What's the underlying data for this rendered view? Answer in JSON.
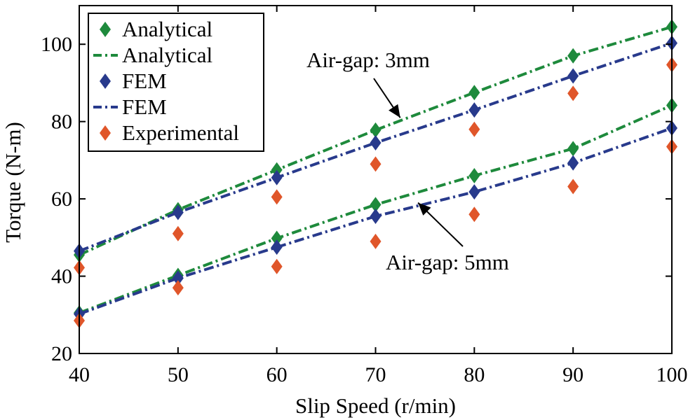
{
  "chart_data": {
    "type": "line",
    "title": "",
    "xlabel": "Slip Speed (r/min)",
    "ylabel": "Torque (N-m)",
    "xlim": [
      40,
      100
    ],
    "ylim": [
      20,
      110
    ],
    "x": [
      40,
      50,
      60,
      70,
      80,
      90,
      100
    ],
    "xticks": [
      40,
      50,
      60,
      70,
      80,
      90,
      100
    ],
    "yticks": [
      20,
      40,
      60,
      80,
      100
    ],
    "grid": false,
    "legend_position": "top-left",
    "colors": {
      "analytical": "#1e8a3c",
      "fem": "#283a8c",
      "experimental": "#e0562a"
    },
    "legend": [
      {
        "label": "Analytical",
        "kind": "marker",
        "color": "#1e8a3c"
      },
      {
        "label": "Analytical",
        "kind": "line",
        "color": "#1e8a3c"
      },
      {
        "label": "FEM",
        "kind": "marker",
        "color": "#283a8c"
      },
      {
        "label": "FEM",
        "kind": "line",
        "color": "#283a8c"
      },
      {
        "label": "Experimental",
        "kind": "marker",
        "color": "#e0562a"
      }
    ],
    "series": [
      {
        "name": "Analytical (Air-gap 3mm)",
        "method": "analytical",
        "gap": "3mm",
        "values": [
          45.5,
          57.2,
          67.5,
          77.8,
          87.5,
          97.0,
          104.5
        ]
      },
      {
        "name": "FEM (Air-gap 3mm)",
        "method": "fem",
        "gap": "3mm",
        "values": [
          46.5,
          56.5,
          65.5,
          74.5,
          83.0,
          91.8,
          100.3
        ]
      },
      {
        "name": "Experimental (Air-gap 3mm)",
        "method": "experimental",
        "gap": "3mm",
        "values": [
          42.2,
          51.0,
          60.5,
          69.0,
          78.0,
          87.3,
          94.7
        ]
      },
      {
        "name": "Analytical (Air-gap 5mm)",
        "method": "analytical",
        "gap": "5mm",
        "values": [
          30.5,
          40.2,
          49.8,
          58.5,
          66.0,
          73.0,
          84.2
        ]
      },
      {
        "name": "FEM (Air-gap 5mm)",
        "method": "fem",
        "gap": "5mm",
        "values": [
          30.2,
          39.5,
          47.5,
          55.5,
          61.8,
          69.3,
          78.3
        ]
      },
      {
        "name": "Experimental (Air-gap 5mm)",
        "method": "experimental",
        "gap": "5mm",
        "values": [
          28.5,
          37.0,
          42.5,
          49.0,
          56.0,
          63.2,
          73.5
        ]
      }
    ],
    "annotations": [
      {
        "text": "Air-gap: 3mm",
        "arrow_to": [
          72.5,
          81.0
        ]
      },
      {
        "text": "Air-gap: 5mm",
        "arrow_to": [
          74.3,
          59.0
        ]
      }
    ]
  }
}
